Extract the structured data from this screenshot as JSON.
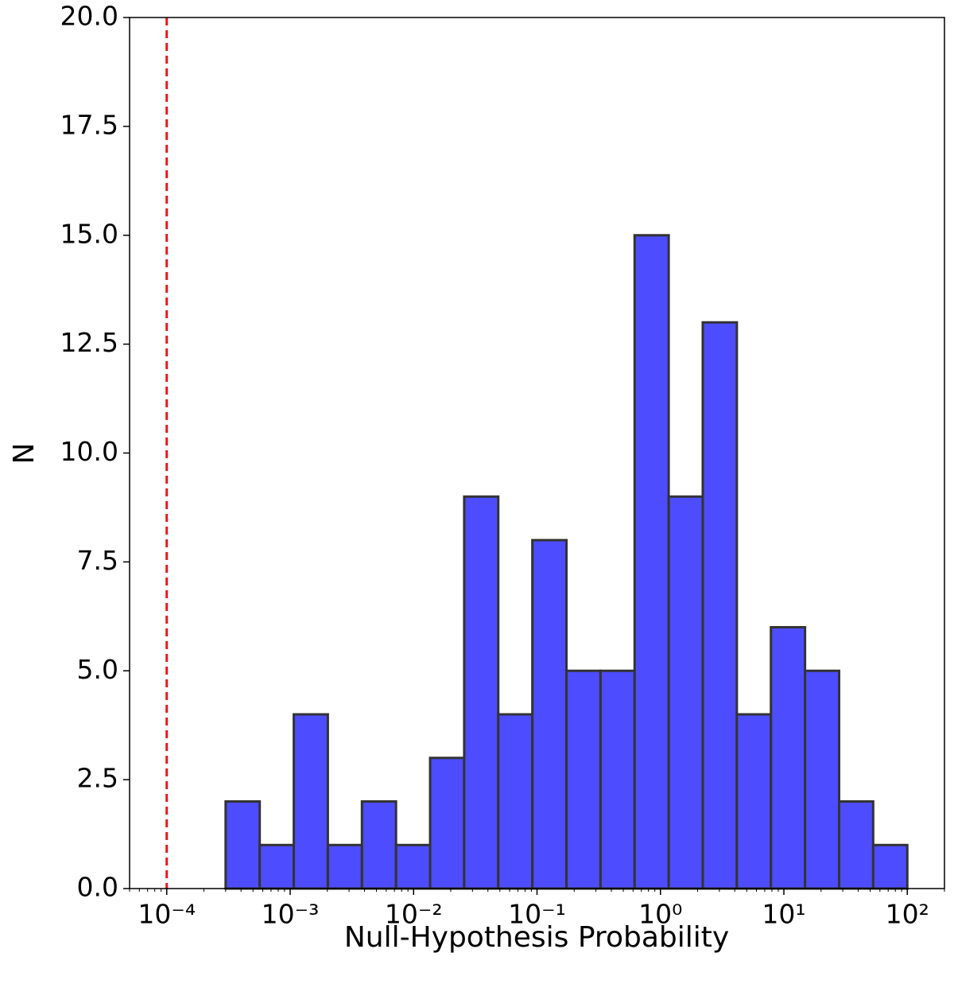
{
  "chart_data": {
    "type": "histogram",
    "xlabel": "Null-Hypothesis Probability",
    "ylabel": "N",
    "xscale": "log",
    "bins": [
      0.0003,
      0.0005665,
      0.00107,
      0.00202,
      0.003815,
      0.007205,
      0.01361,
      0.0257,
      0.04853,
      0.09168,
      0.1732,
      0.327,
      0.6175,
      1.166,
      2.202,
      4.159,
      7.855,
      14.84,
      28.02,
      52.91,
      100
    ],
    "counts": [
      2,
      1,
      4,
      1,
      2,
      1,
      3,
      9,
      4,
      8,
      5,
      5,
      15,
      9,
      13,
      4,
      6,
      5,
      2,
      1
    ],
    "color": "#4d4dff",
    "edgecolor": "#333333",
    "threshold": {
      "value": 0.0001,
      "color": "#e41a1c"
    },
    "xlim": [
      5e-05,
      200
    ],
    "xticks": [
      {
        "value": 0.0001,
        "label": "10⁻⁴"
      },
      {
        "value": 0.001,
        "label": "10⁻³"
      },
      {
        "value": 0.01,
        "label": "10⁻²"
      },
      {
        "value": 0.1,
        "label": "10⁻¹"
      },
      {
        "value": 1,
        "label": "10⁰"
      },
      {
        "value": 10,
        "label": "10¹"
      },
      {
        "value": 100,
        "label": "10²"
      }
    ],
    "ylim": [
      0,
      20
    ],
    "yticks": [
      {
        "value": 0,
        "label": "0.0"
      },
      {
        "value": 2.5,
        "label": "2.5"
      },
      {
        "value": 5,
        "label": "5.0"
      },
      {
        "value": 7.5,
        "label": "7.5"
      },
      {
        "value": 10,
        "label": "10.0"
      },
      {
        "value": 12.5,
        "label": "12.5"
      },
      {
        "value": 15,
        "label": "15.0"
      },
      {
        "value": 17.5,
        "label": "17.5"
      },
      {
        "value": 20,
        "label": "20.0"
      }
    ]
  }
}
